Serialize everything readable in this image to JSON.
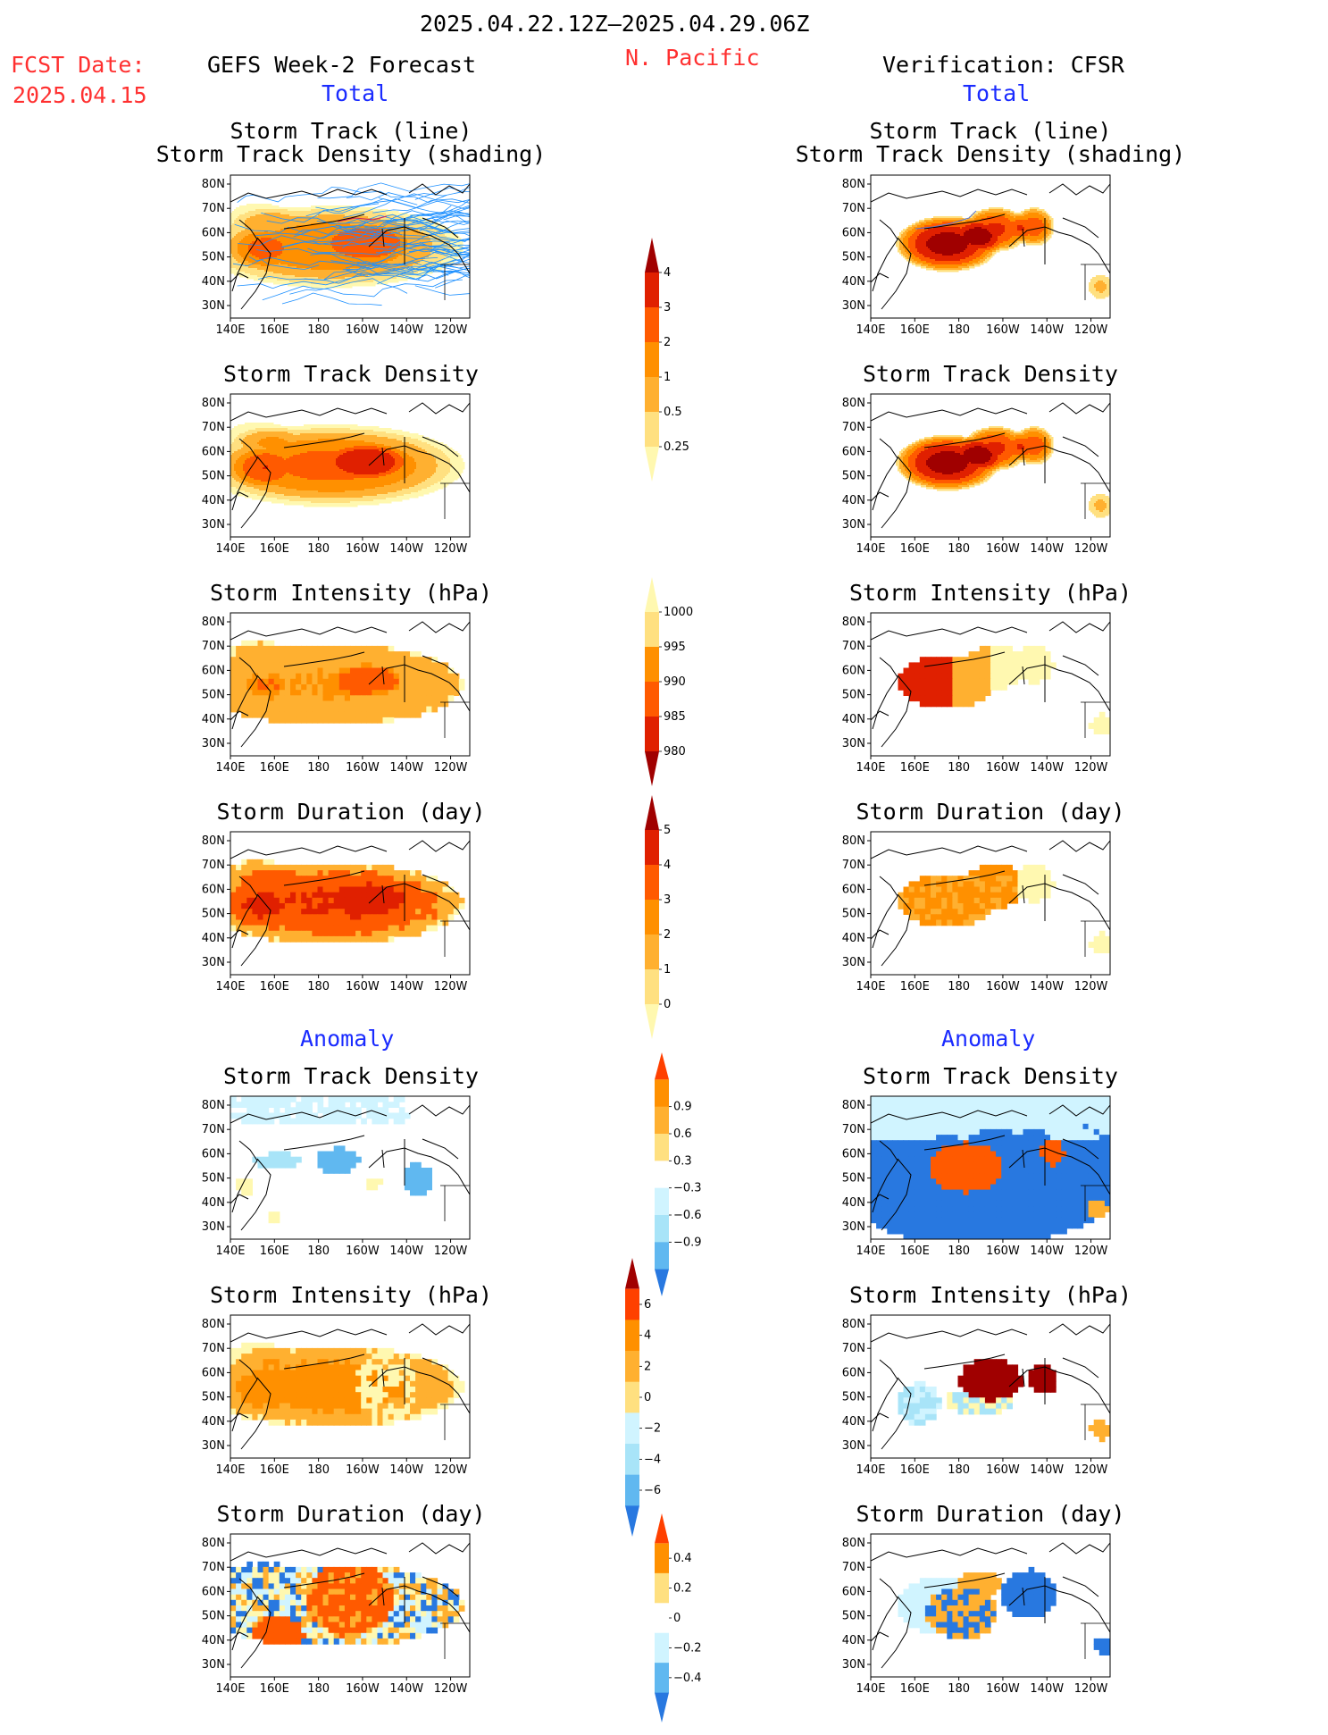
{
  "header": {
    "date_range": "2025.04.22.12Z—2025.04.29.06Z",
    "region": "N. Pacific",
    "fcst_label": "FCST Date:",
    "fcst_date": "2025.04.15",
    "left_title": "GEFS Week-2 Forecast",
    "right_title": "Verification: CFSR",
    "total_label": "Total",
    "anomaly_label": "Anomaly"
  },
  "panel_titles": {
    "track_line": "Storm Track (line)",
    "track_density_shading": "Storm Track Density (shading)",
    "track_density": "Storm Track Density",
    "intensity": "Storm Intensity (hPa)",
    "duration": "Storm Duration (day)"
  },
  "map_axes": {
    "lon_ticks": [
      "140E",
      "160E",
      "180",
      "160W",
      "140W",
      "120W"
    ],
    "lat_ticks": [
      "80N",
      "70N",
      "60N",
      "50N",
      "40N",
      "30N"
    ]
  },
  "colorbars": {
    "density": [
      "4",
      "3",
      "2",
      "1",
      "0.5",
      "0.25"
    ],
    "intensity": [
      "1000",
      "995",
      "990",
      "985",
      "980"
    ],
    "duration": [
      "5",
      "4",
      "3",
      "2",
      "1",
      "0"
    ],
    "density_anom": [
      "0.9",
      "0.6",
      "0.3",
      "−0.3",
      "−0.6",
      "−0.9"
    ],
    "intensity_anom": [
      "6",
      "4",
      "2",
      "0",
      "−2",
      "−4",
      "−6"
    ],
    "duration_anom": [
      "0.4",
      "0.2",
      "0",
      "−0.2",
      "−0.4"
    ]
  },
  "colors": {
    "title_red": "#ff3030",
    "label_blue": "#1a2bff",
    "track_line": "#1e90ff",
    "warm": [
      "#fff8b0",
      "#ffe080",
      "#ffb030",
      "#ff9000",
      "#ff5a00",
      "#e02000",
      "#a00000"
    ],
    "cool": [
      "#d0f4ff",
      "#a8e4f8",
      "#60b8f0",
      "#2878e0",
      "#1050c8"
    ]
  }
}
